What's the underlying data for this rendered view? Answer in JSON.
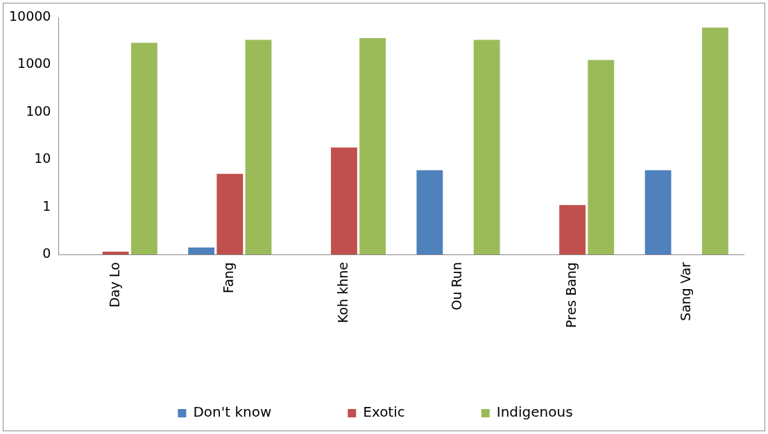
{
  "chart_data": {
    "type": "bar",
    "categories": [
      "Day Lo",
      "Fang",
      "Koh khne",
      "Ou Run",
      "Pres Bang",
      "Sang Var"
    ],
    "series": [
      {
        "name": "Don't know",
        "color": "#4f81bd",
        "values": [
          null,
          0.14,
          null,
          6,
          null,
          6
        ]
      },
      {
        "name": "Exotic",
        "color": "#c0504d",
        "values": [
          0.115,
          5,
          18,
          null,
          1.1,
          null
        ]
      },
      {
        "name": "Indigenous",
        "color": "#9bbb59",
        "values": [
          2900,
          3350,
          3650,
          3350,
          1260,
          6100
        ]
      }
    ],
    "log": "y",
    "ylim": [
      0.1,
      10000
    ],
    "yticks": [
      {
        "value": 0.1,
        "label": "0"
      },
      1,
      10,
      100,
      1000,
      10000
    ],
    "grid": false,
    "legend": "bottom"
  }
}
